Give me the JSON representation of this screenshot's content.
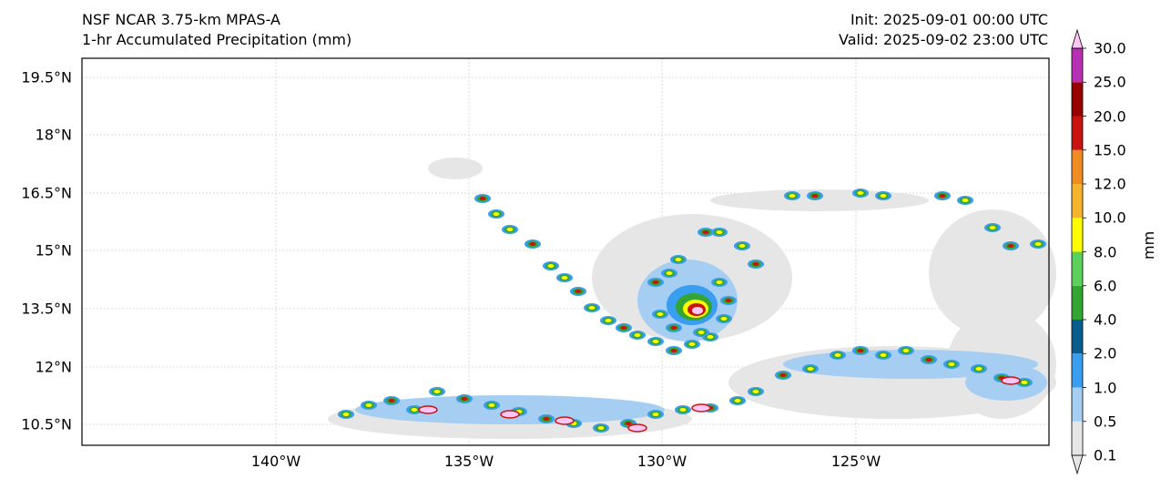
{
  "header": {
    "model": "NSF NCAR 3.75-km MPAS-A",
    "field": "1-hr Accumulated Precipitation (mm)",
    "init": "Init: 2025-09-01 00:00 UTC",
    "valid": "Valid: 2025-09-02 23:00 UTC"
  },
  "axes": {
    "lat_ticks": [
      "19.5°N",
      "18°N",
      "16.5°N",
      "15°N",
      "13.5°N",
      "12°N",
      "10.5°N"
    ],
    "lon_ticks": [
      "140°W",
      "135°W",
      "130°W",
      "125°W"
    ]
  },
  "colorbar": {
    "unit": "mm",
    "levels": [
      "0.1",
      "0.5",
      "1.0",
      "2.0",
      "4.0",
      "6.0",
      "8.0",
      "10.0",
      "12.0",
      "15.0",
      "20.0",
      "25.0",
      "30.0"
    ],
    "colors": [
      "#e6e6e6",
      "#a6cef3",
      "#3a9ef0",
      "#0a5c8c",
      "#33a532",
      "#5bd15b",
      "#ffff00",
      "#f6b42d",
      "#ef8c22",
      "#c8140f",
      "#960000",
      "#b830b4",
      "#ffc6f5"
    ]
  },
  "map_colors": {
    "land_light": "#e6e6e6",
    "frame": "#000000",
    "grid": "#d0d0d0"
  }
}
